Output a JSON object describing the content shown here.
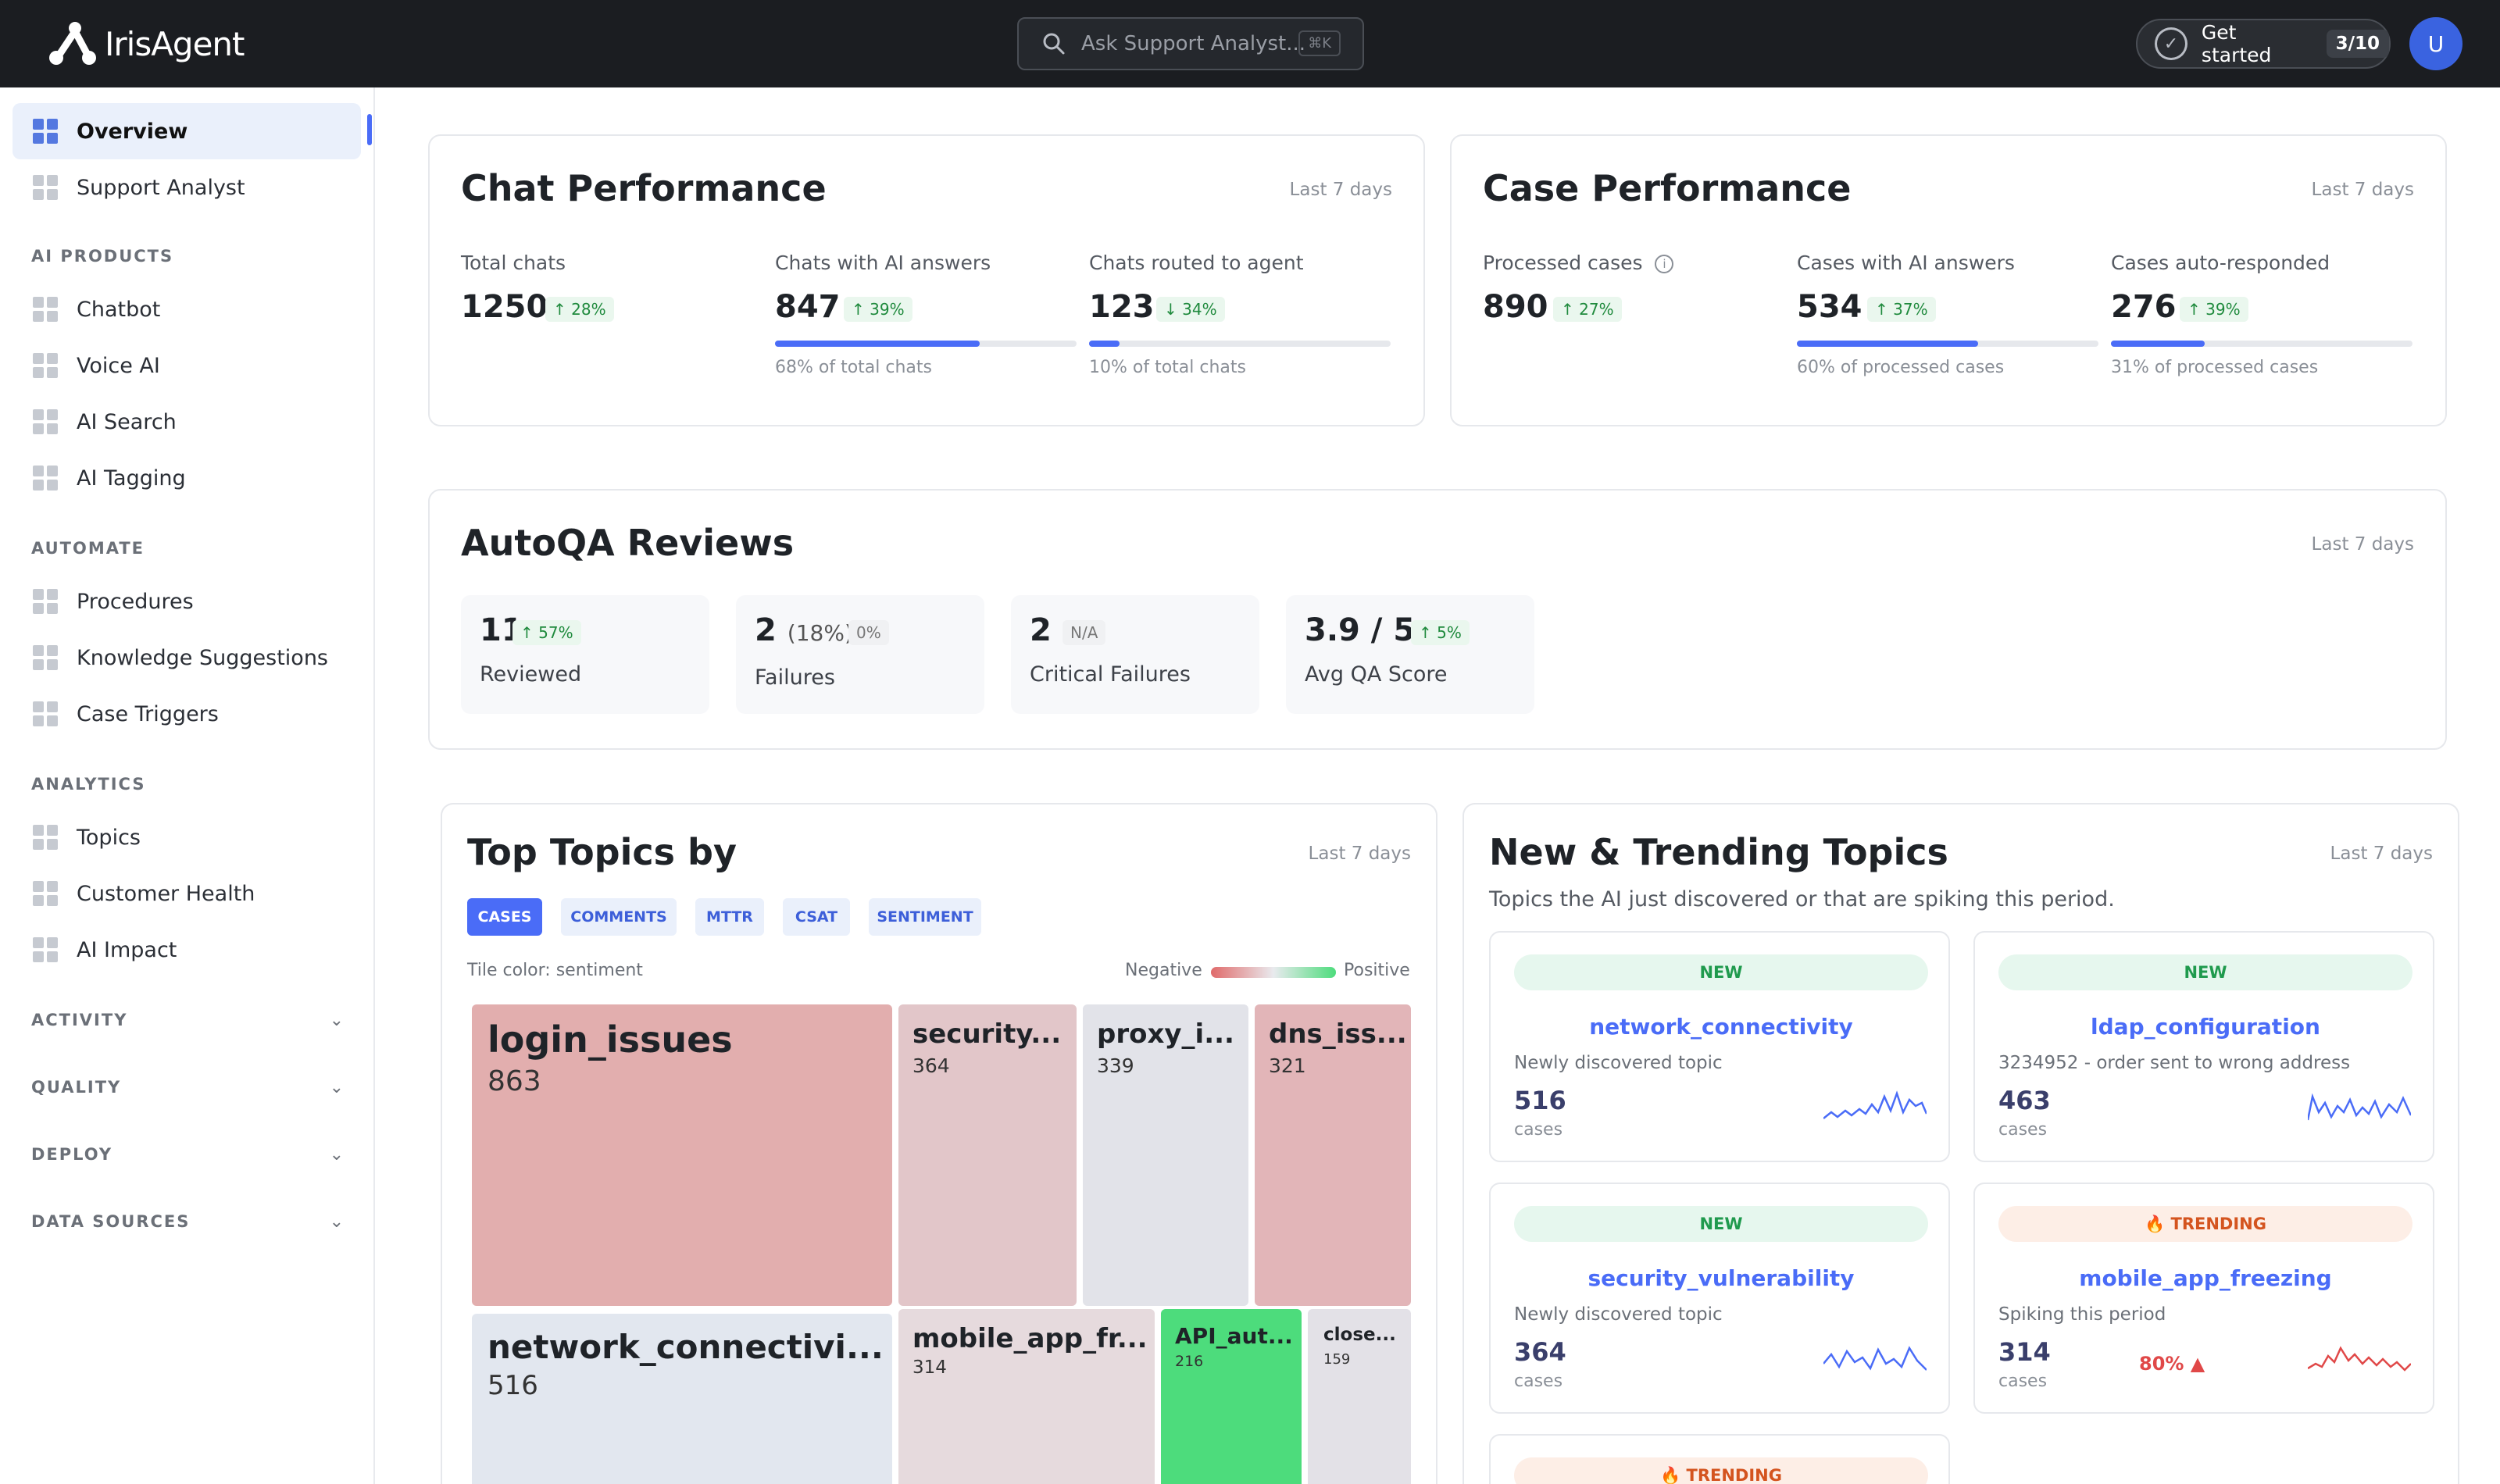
{
  "topbar": {
    "logo_text": "IrisAgent",
    "search_placeholder": "Ask Support Analyst...",
    "search_shortcut": "⌘K",
    "get_started_label": "Get started",
    "get_started_progress": "3/10",
    "avatar_initial": "U"
  },
  "sidebar": {
    "top_items": [
      {
        "label": "Overview",
        "active": true
      },
      {
        "label": "Support Analyst",
        "active": false
      }
    ],
    "sections": [
      {
        "title": "AI PRODUCTS",
        "items": [
          "Chatbot",
          "Voice AI",
          "AI Search",
          "AI Tagging"
        ]
      },
      {
        "title": "AUTOMATE",
        "items": [
          "Procedures",
          "Knowledge Suggestions",
          "Case Triggers"
        ]
      },
      {
        "title": "ANALYTICS",
        "items": [
          "Topics",
          "Customer Health",
          "AI Impact"
        ]
      }
    ],
    "collapsed_sections": [
      "ACTIVITY",
      "QUALITY",
      "DEPLOY",
      "DATA SOURCES"
    ]
  },
  "chat_performance": {
    "title": "Chat Performance",
    "period": "Last 7 days",
    "metrics": [
      {
        "label": "Total chats",
        "value": "1250",
        "delta": "↑ 28%"
      },
      {
        "label": "Chats with AI answers",
        "value": "847",
        "delta": "↑ 39%",
        "progress": 0.68,
        "note": "68% of total chats"
      },
      {
        "label": "Chats routed to agent",
        "value": "123",
        "delta": "↓ 34%",
        "progress": 0.1,
        "note": "10% of total chats"
      }
    ]
  },
  "case_performance": {
    "title": "Case Performance",
    "period": "Last 7 days",
    "metrics": [
      {
        "label": "Processed cases",
        "value": "890",
        "delta": "↑ 27%"
      },
      {
        "label": "Cases with AI answers",
        "value": "534",
        "delta": "↑ 37%",
        "progress": 0.6,
        "note": "60% of processed cases"
      },
      {
        "label": "Cases auto-responded",
        "value": "276",
        "delta": "↑ 39%",
        "progress": 0.31,
        "note": "31% of processed cases"
      }
    ]
  },
  "autoqa": {
    "title": "AutoQA Reviews",
    "period": "Last 7 days",
    "stats": [
      {
        "value": "11",
        "extra": "",
        "delta": "↑ 57%",
        "label": "Reviewed"
      },
      {
        "value": "2",
        "extra": "(18%)",
        "delta": "0%",
        "label": "Failures"
      },
      {
        "value": "2",
        "extra": "",
        "delta": "N/A",
        "label": "Critical Failures"
      },
      {
        "value": "3.9 / 5",
        "extra": "",
        "delta": "↑ 5%",
        "label": "Avg QA Score"
      }
    ]
  },
  "top_topics": {
    "title": "Top Topics by",
    "period": "Last 7 days",
    "tabs": [
      "CASES",
      "COMMENTS",
      "MTTR",
      "CSAT",
      "SENTIMENT"
    ],
    "active_tab": "CASES",
    "tile_color_note": "Tile color: sentiment",
    "legend_negative": "Negative",
    "legend_positive": "Positive",
    "tiles": [
      {
        "name": "login_issues",
        "count": "863"
      },
      {
        "name": "security...",
        "count": "364"
      },
      {
        "name": "proxy_i...",
        "count": "339"
      },
      {
        "name": "dns_iss...",
        "count": "321"
      },
      {
        "name": "network_connectivi...",
        "count": "516"
      },
      {
        "name": "mobile_app_fr...",
        "count": "314"
      },
      {
        "name": "API_aut...",
        "count": "216"
      },
      {
        "name": "close...",
        "count": "159"
      }
    ]
  },
  "trending": {
    "title": "New & Trending Topics",
    "period": "Last 7 days",
    "subtitle": "Topics the AI just discovered or that are spiking this period.",
    "cards": [
      {
        "badge": "NEW",
        "title": "network_connectivity",
        "sub": "Newly discovered topic",
        "value": "516",
        "unit": "cases",
        "pct": ""
      },
      {
        "badge": "NEW",
        "title": "ldap_configuration",
        "sub": "3234952 - order sent to wrong address",
        "value": "463",
        "unit": "cases",
        "pct": ""
      },
      {
        "badge": "NEW",
        "title": "security_vulnerability",
        "sub": "Newly discovered topic",
        "value": "364",
        "unit": "cases",
        "pct": ""
      },
      {
        "badge": "🔥 TRENDING",
        "title": "mobile_app_freezing",
        "sub": "Spiking this period",
        "value": "314",
        "unit": "cases",
        "pct": "80% ▲"
      },
      {
        "badge": "🔥 TRENDING",
        "title": "",
        "sub": "",
        "value": "",
        "unit": "",
        "pct": ""
      }
    ]
  },
  "colors": {
    "accent": "#4a6cf7",
    "positive": "#1f8a3d",
    "negative": "#e04848"
  }
}
